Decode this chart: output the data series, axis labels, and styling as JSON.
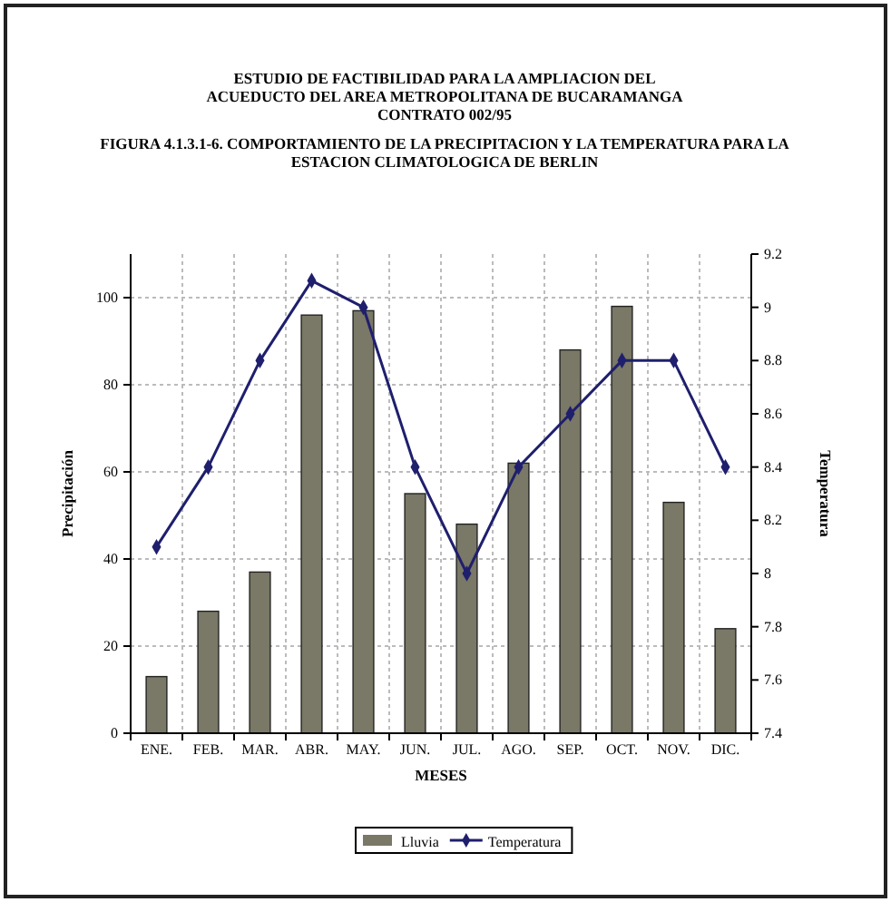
{
  "chart_data": {
    "type": "bar",
    "title": "ESTUDIO DE FACTIBILIDAD PARA LA AMPLIACION DEL\nACUEDUCTO DEL AREA METROPOLITANA DE BUCARAMANGA\nCONTRATO 002/95",
    "subtitle": "FIGURA  4.1.3.1-6. COMPORTAMIENTO DE LA PRECIPITACION Y LA TEMPERATURA PARA LA\nESTACION CLIMATOLOGICA  DE BERLIN",
    "xlabel": "MESES",
    "ylabel": "Precipitación",
    "y2label": "Temperatura",
    "categories": [
      "ENE.",
      "FEB.",
      "MAR.",
      "ABR.",
      "MAY.",
      "JUN.",
      "JUL.",
      "AGO.",
      "SEP.",
      "OCT.",
      "NOV.",
      "DIC."
    ],
    "series": [
      {
        "name": "Lluvia",
        "color": "#7a7866",
        "values": [
          13,
          28,
          37,
          96,
          97,
          55,
          48,
          62,
          88,
          98,
          53,
          24
        ]
      },
      {
        "name": "Temperatura",
        "type": "line",
        "axis": "y2",
        "color": "#1f1f6e",
        "marker": "diamond",
        "values": [
          8.1,
          8.4,
          8.8,
          9.1,
          9.0,
          8.4,
          8.0,
          8.4,
          8.6,
          8.8,
          8.8,
          8.4
        ]
      }
    ],
    "ylim": [
      0,
      110
    ],
    "yticks": [
      0,
      20,
      40,
      60,
      80,
      100
    ],
    "y2lim": [
      7.4,
      9.2
    ],
    "y2ticks": [
      7.4,
      7.6,
      7.8,
      8,
      8.2,
      8.4,
      8.6,
      8.8,
      9,
      9.2
    ],
    "grid": true,
    "legend": "bottom"
  }
}
